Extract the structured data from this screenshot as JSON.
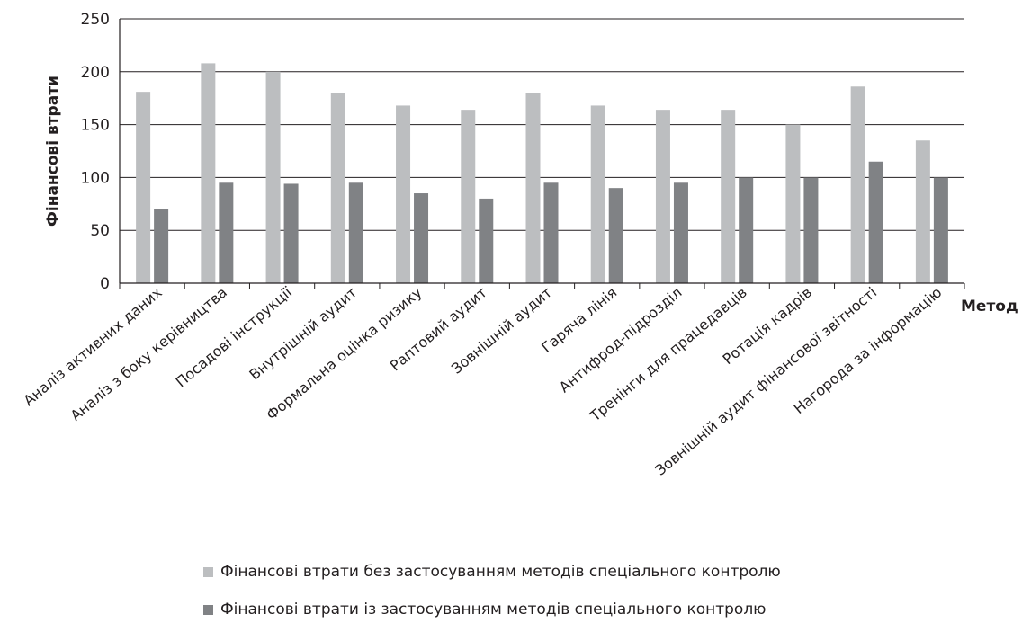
{
  "chart_data": {
    "type": "bar",
    "title": "",
    "xlabel": "Метод",
    "ylabel": "Фінансові втрати",
    "ylim": [
      0,
      250
    ],
    "yticks": [
      "0",
      "50",
      "100",
      "150",
      "200",
      "250"
    ],
    "grid": true,
    "legend_position": "bottom",
    "categories": [
      "Аналіз активних даних",
      "Аналіз з боку керівництва",
      "Посадові інструкції",
      "Внутрішній аудит",
      "Формальна оцінка ризику",
      "Раптовий аудит",
      "Зовнішній аудит",
      "Гаряча лінія",
      "Антифрод-підрозділ",
      "Тренінги для працедавців",
      "Ротація кадрів",
      "Зовнішній аудит фінансової звітності",
      "Нагорода за інформацію"
    ],
    "series": [
      {
        "name": "Фінансові втрати без застосуванням  методів спеціального контролю",
        "color": "#bcbec0",
        "values": [
          181,
          208,
          200,
          180,
          168,
          164,
          180,
          168,
          164,
          164,
          150,
          186,
          135
        ]
      },
      {
        "name": "Фінансові втрати із застосуванням методів спеціального контролю",
        "color": "#808285",
        "values": [
          70,
          95,
          94,
          95,
          85,
          80,
          95,
          90,
          95,
          100,
          100,
          115,
          100
        ]
      }
    ]
  }
}
